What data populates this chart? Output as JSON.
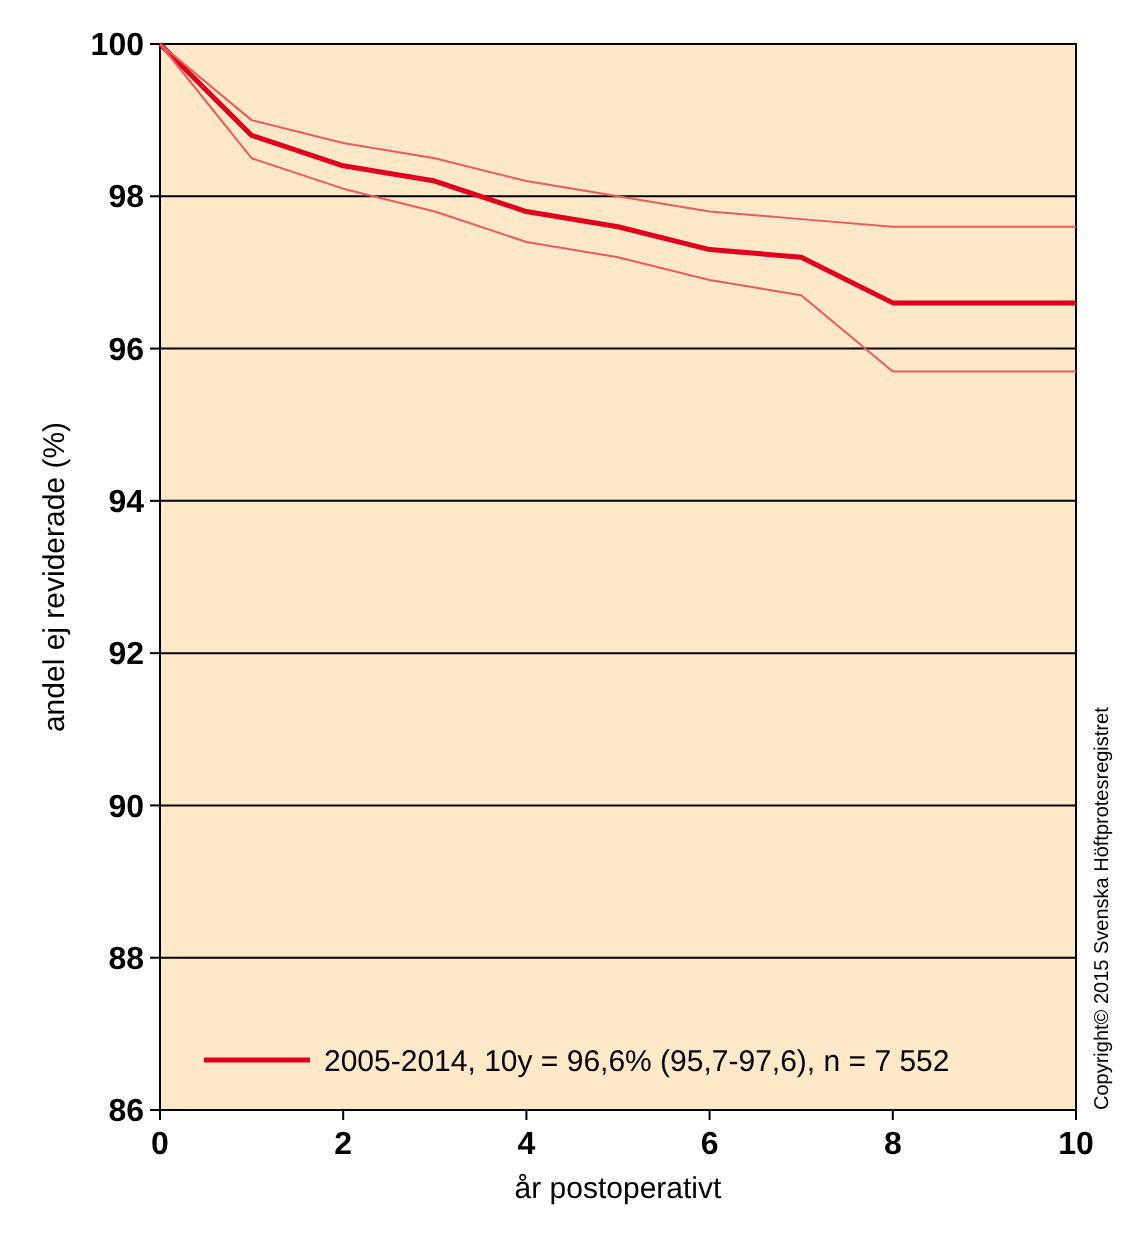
{
  "chart_data": {
    "type": "line",
    "xlabel": "år postoperativt",
    "ylabel": "andel ej reviderade (%)",
    "x": [
      0,
      1,
      2,
      3,
      4,
      5,
      6,
      7,
      8,
      9,
      10
    ],
    "series": [
      {
        "name": "2005-2014, 10y = 96,6% (95,7-97,6), n = 7 552",
        "color": "#e2001a",
        "values": [
          100,
          98.8,
          98.4,
          98.2,
          97.8,
          97.6,
          97.3,
          97.2,
          96.6,
          96.6,
          96.6
        ]
      },
      {
        "color": "#ee5a5a",
        "values": [
          100,
          98.5,
          98.1,
          97.8,
          97.4,
          97.2,
          96.9,
          96.7,
          95.7,
          95.7,
          95.7
        ]
      },
      {
        "color": "#ee5a5a",
        "values": [
          100,
          99.0,
          98.7,
          98.5,
          98.2,
          98.0,
          97.8,
          97.7,
          97.6,
          97.6,
          97.6
        ]
      }
    ],
    "xlim": [
      0,
      10
    ],
    "xticks": [
      0,
      2,
      4,
      6,
      8,
      10
    ],
    "ylim": [
      86,
      100
    ],
    "yticks": [
      86,
      88,
      90,
      92,
      94,
      96,
      98,
      100
    ],
    "grid": "y",
    "legend": "bottom",
    "marker": "none",
    "line_style": "solid",
    "annotations": [
      "Copyright© 2015 Svenska Höftprotesregistret"
    ]
  }
}
